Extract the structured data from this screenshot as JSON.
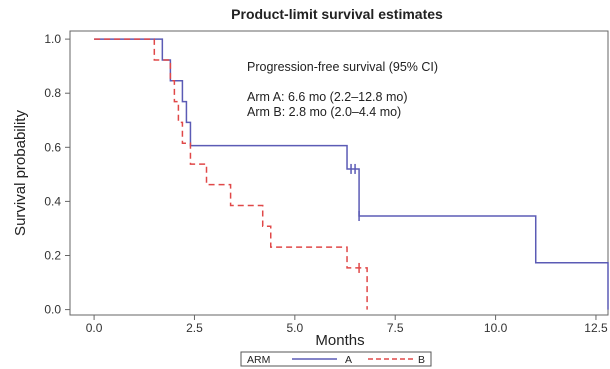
{
  "chart_data": {
    "type": "line",
    "title": "Product-limit survival estimates",
    "xlabel": "Months",
    "ylabel": "Survival probability",
    "xlim": [
      -0.6,
      12.8
    ],
    "ylim": [
      -0.02,
      1.03
    ],
    "x_ticks": [
      0,
      2.5,
      5,
      7.5,
      10,
      12.5
    ],
    "x_tick_labels": [
      "0.0",
      "2.5",
      "5.0",
      "7.5",
      "10.0",
      "12.5"
    ],
    "y_ticks": [
      0,
      0.2,
      0.4,
      0.6,
      0.8,
      1.0
    ],
    "y_tick_labels": [
      "0.0",
      "0.2",
      "0.4",
      "0.6",
      "0.8",
      "1.0"
    ],
    "grid": false,
    "annotations": [
      "Progression-free survival (95% CI)",
      "Arm A: 6.6 mo (2.2–12.8 mo)",
      "Arm B: 2.8 mo (2.0–4.4 mo)"
    ],
    "legend": {
      "title": "ARM",
      "placement": "bottom-center"
    },
    "series": [
      {
        "name": "A",
        "color": "#5b5bb5",
        "style": "solid",
        "steps": [
          [
            0,
            1.0
          ],
          [
            1.7,
            0.923
          ],
          [
            1.9,
            0.846
          ],
          [
            2.2,
            0.769
          ],
          [
            2.3,
            0.692
          ],
          [
            2.4,
            0.606
          ],
          [
            6.3,
            0.52
          ],
          [
            6.6,
            0.346
          ],
          [
            11.0,
            0.173
          ],
          [
            12.8,
            0.0
          ]
        ],
        "end_x": 12.8,
        "censored": [
          6.4,
          6.5,
          6.6
        ]
      },
      {
        "name": "B",
        "color": "#e04848",
        "style": "dashed",
        "steps": [
          [
            0,
            1.0
          ],
          [
            1.5,
            0.923
          ],
          [
            1.9,
            0.846
          ],
          [
            2.0,
            0.769
          ],
          [
            2.1,
            0.692
          ],
          [
            2.2,
            0.615
          ],
          [
            2.4,
            0.538
          ],
          [
            2.8,
            0.462
          ],
          [
            3.4,
            0.385
          ],
          [
            4.2,
            0.308
          ],
          [
            4.4,
            0.231
          ],
          [
            6.3,
            0.154
          ],
          [
            6.8,
            0.0
          ]
        ],
        "end_x": 6.8,
        "censored": [
          6.6
        ]
      }
    ]
  }
}
